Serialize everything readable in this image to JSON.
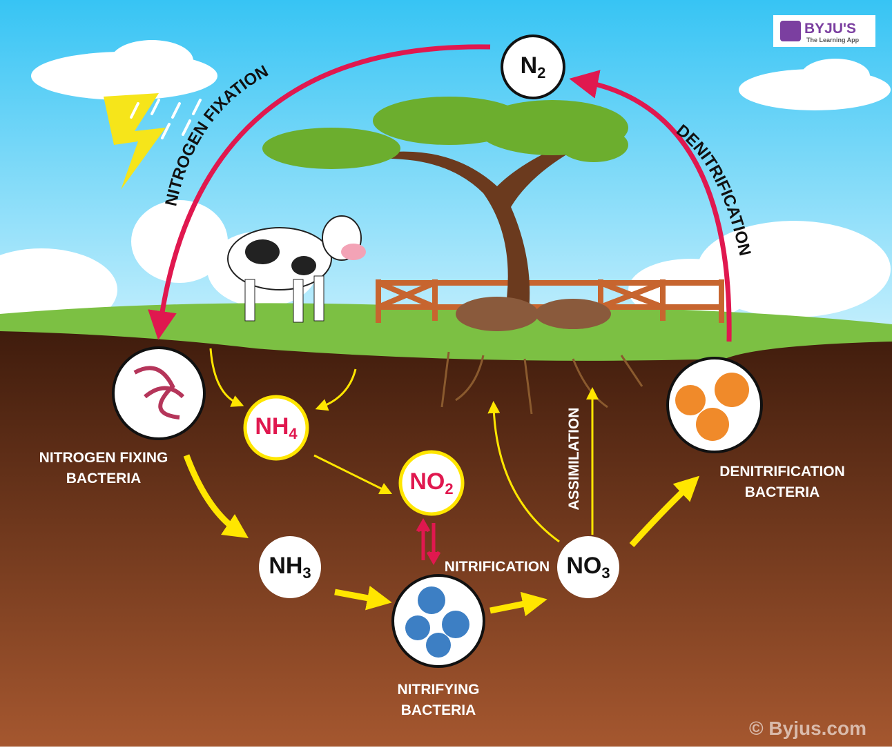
{
  "logo": {
    "brand": "BYJU'S",
    "tagline": "The Learning App"
  },
  "processes": {
    "fixation": "NITROGEN FIXATION",
    "denitrification": "DENITRIFICATION",
    "nitrification": "NITRIFICATION",
    "assimilation": "ASSIMILATION"
  },
  "compounds": [
    {
      "base": "N",
      "sub": "2"
    },
    {
      "base": "NH",
      "sub": "4"
    },
    {
      "base": "NO",
      "sub": "2"
    },
    {
      "base": "NH",
      "sub": "3"
    },
    {
      "base": "NO",
      "sub": "3"
    }
  ],
  "organisms": [
    {
      "lines": [
        "NITROGEN FIXING",
        "BACTERIA"
      ]
    },
    {
      "lines": [
        "NITRIFYING",
        "BACTERIA"
      ]
    },
    {
      "lines": [
        "DENITRIFICATION",
        "BACTERIA"
      ]
    }
  ],
  "watermark": "© Byjus.com"
}
